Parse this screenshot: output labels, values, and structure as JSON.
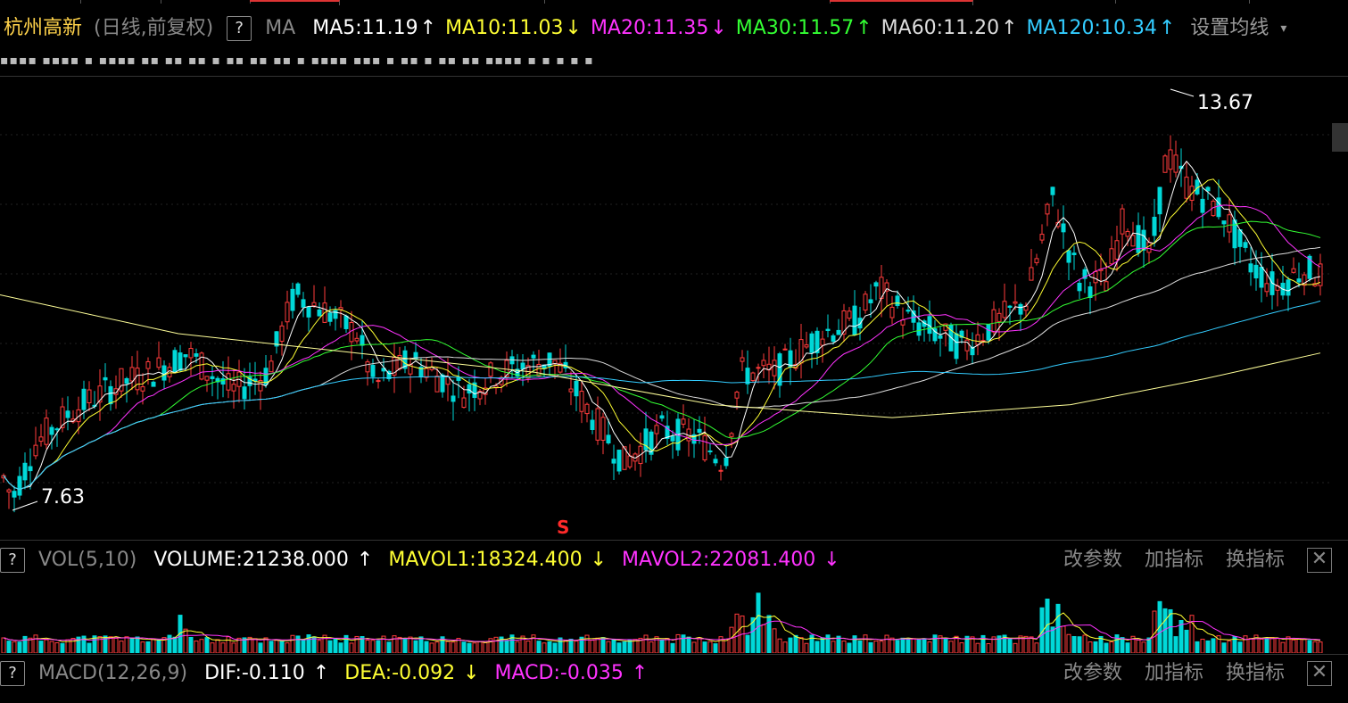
{
  "header": {
    "stock_name": "杭州高新",
    "mode": "(日线,前复权)",
    "help": "?",
    "indicator": "MA",
    "ma": [
      {
        "label": "MA5:11.19",
        "arrow": "↑",
        "color": "#ffffff"
      },
      {
        "label": "MA10:11.03",
        "arrow": "↓",
        "color": "#ffff33"
      },
      {
        "label": "MA20:11.35",
        "arrow": "↓",
        "color": "#ff33ff"
      },
      {
        "label": "MA30:11.57",
        "arrow": "↑",
        "color": "#33ff33"
      },
      {
        "label": "MA60:11.20",
        "arrow": "↑",
        "color": "#dddddd"
      },
      {
        "label": "MA120:10.34",
        "arrow": "↑",
        "color": "#33ccff"
      }
    ],
    "settings": "设置均线",
    "settings_arrow": "▾"
  },
  "marks_row": "▪▪▪▪ ▪▪▪▪ ▪ ▪▪▪▪ ▪▪ ▪▪ ▪▪ ▪ ▪▪ ▪▪ ▪▪ ▪ ▪▪▪▪ ▪▪▪ ▪ ▪▪ ▪ ▪▪ ▪▪ ▪▪▪▪ ▪ ▪ ▪ ▪ ▪",
  "chart": {
    "high_label": "13.67",
    "low_label": "7.63",
    "signal": "S"
  },
  "volume_panel": {
    "help": "?",
    "name": "VOL(5,10)",
    "volume": "VOLUME:21238.000",
    "volume_arrow": "↑",
    "mavol1": "MAVOL1:18324.400",
    "mavol1_arrow": "↓",
    "mavol2": "MAVOL2:22081.400",
    "mavol2_arrow": "↓",
    "btn_params": "改参数",
    "btn_add": "加指标",
    "btn_switch": "换指标",
    "close": "✕"
  },
  "macd_panel": {
    "help": "?",
    "name": "MACD(12,26,9)",
    "dif": "DIF:-0.110",
    "dif_arrow": "↑",
    "dea": "DEA:-0.092",
    "dea_arrow": "↓",
    "macd": "MACD:-0.035",
    "macd_arrow": "↑",
    "btn_params": "改参数",
    "btn_add": "加指标",
    "btn_switch": "换指标",
    "close": "✕"
  },
  "colors": {
    "up": "#ff3b3b",
    "down": "#00d8d8",
    "ma5": "#ffffff",
    "ma10": "#ffff33",
    "ma20": "#ff33ff",
    "ma30": "#33ff33",
    "ma60": "#dddddd",
    "ma120": "#33ccff",
    "ma250": "#ffff99"
  }
}
